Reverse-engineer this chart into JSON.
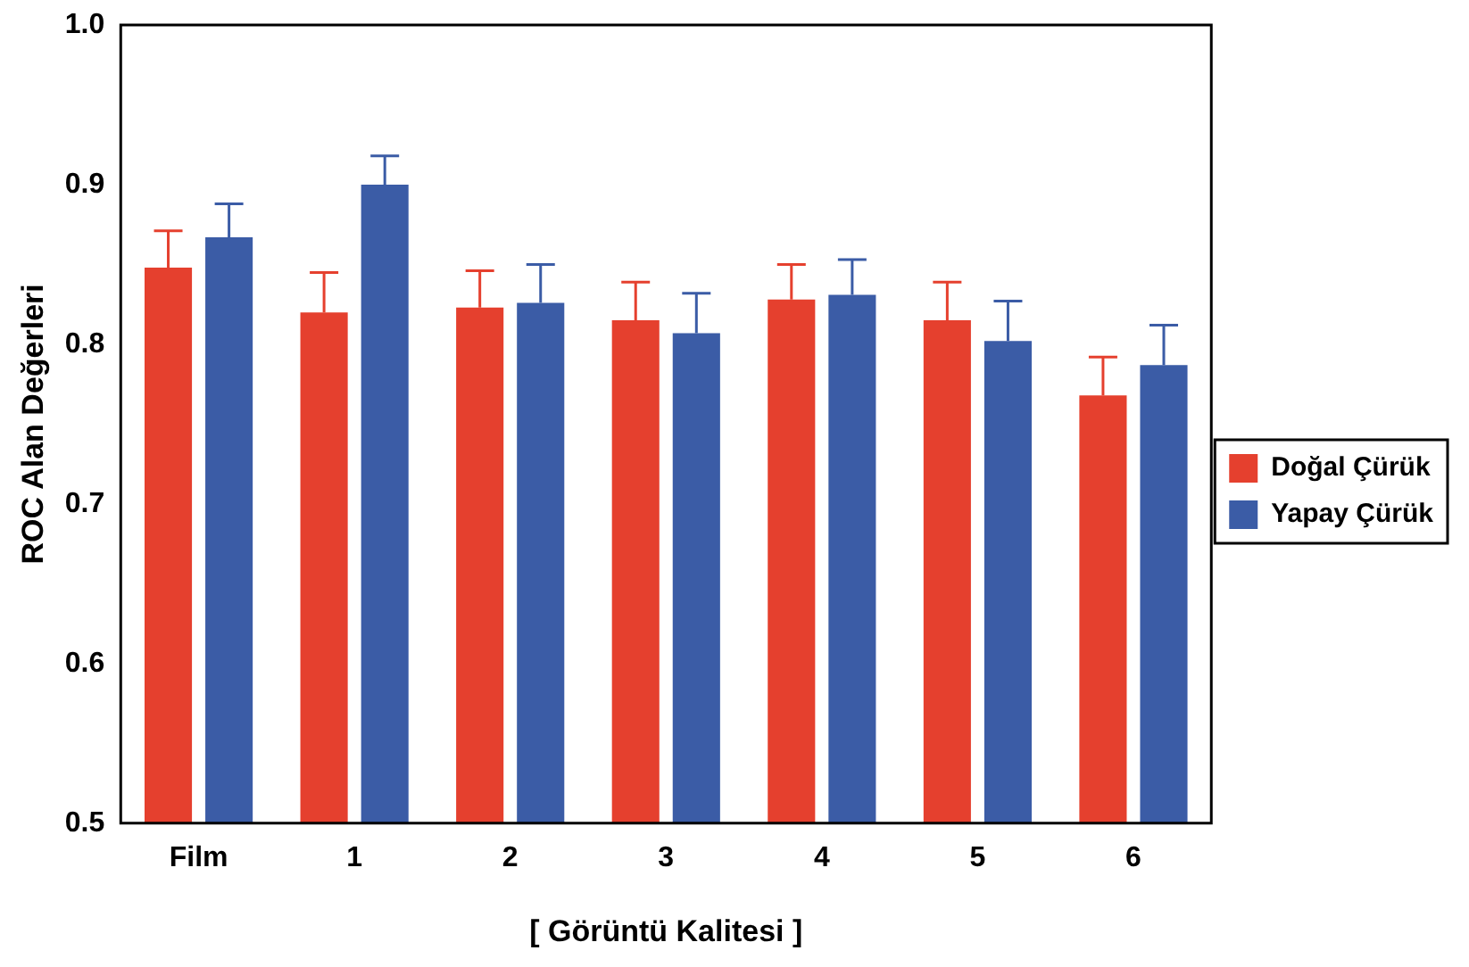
{
  "chart_data": {
    "type": "bar",
    "xlabel": "[ Görüntü Kalitesi ]",
    "ylabel": "ROC Alan Değerleri",
    "categories": [
      "Film",
      "1",
      "2",
      "3",
      "4",
      "5",
      "6"
    ],
    "series": [
      {
        "name": "Doğal Çürük",
        "color": "#e5402e",
        "values": [
          0.848,
          0.82,
          0.823,
          0.815,
          0.828,
          0.815,
          0.768
        ],
        "errors": [
          [
            0.848,
            0.871
          ],
          [
            0.82,
            0.845
          ],
          [
            0.823,
            0.846
          ],
          [
            0.815,
            0.839
          ],
          [
            0.828,
            0.85
          ],
          [
            0.815,
            0.839
          ],
          [
            0.768,
            0.792
          ]
        ]
      },
      {
        "name": "Yapay Çürük",
        "color": "#3b5ca6",
        "values": [
          0.867,
          0.9,
          0.826,
          0.807,
          0.831,
          0.802,
          0.787
        ],
        "errors": [
          [
            0.867,
            0.888
          ],
          [
            0.9,
            0.918
          ],
          [
            0.826,
            0.85
          ],
          [
            0.807,
            0.832
          ],
          [
            0.831,
            0.853
          ],
          [
            0.802,
            0.827
          ],
          [
            0.787,
            0.812
          ]
        ]
      }
    ],
    "ylim": [
      0.5,
      1.0
    ],
    "yticks": [
      0.5,
      0.6,
      0.7,
      0.8,
      0.9,
      {
        "value": 1.0,
        "label": "1.0"
      }
    ],
    "grid": false,
    "legend": "right"
  }
}
